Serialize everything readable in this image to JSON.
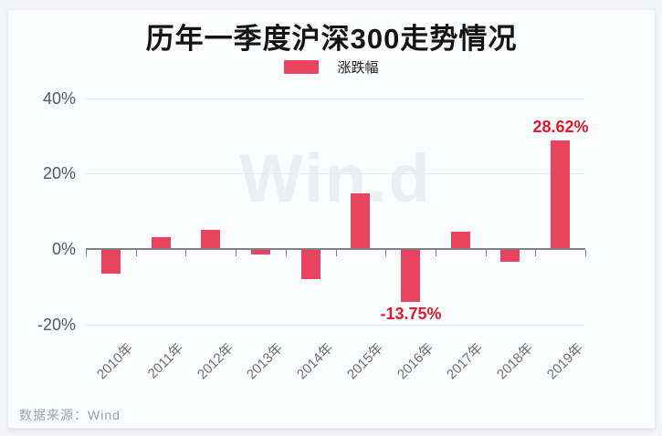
{
  "title": "历年一季度沪深300走势情况",
  "legend": {
    "label": "涨跌幅",
    "swatch_color": "#e8435f"
  },
  "watermark": "Win.d",
  "source_note": "数据来源：Wind",
  "chart_data": {
    "type": "bar",
    "title": "历年一季度沪深300走势情况",
    "series_name": "涨跌幅",
    "categories": [
      "2010年",
      "2011年",
      "2012年",
      "2013年",
      "2014年",
      "2015年",
      "2016年",
      "2017年",
      "2018年",
      "2019年"
    ],
    "values": [
      -6.3,
      3.0,
      4.9,
      -1.2,
      -7.8,
      14.6,
      -13.75,
      4.4,
      -3.2,
      28.62
    ],
    "data_labels": [
      {
        "category": "2016年",
        "text": "-13.75%"
      },
      {
        "category": "2019年",
        "text": "28.62%"
      }
    ],
    "ytick_labels": [
      "40%",
      "20%",
      "0%",
      "-20%"
    ],
    "ytick_values": [
      40,
      20,
      0,
      -20
    ],
    "ylim": [
      -25,
      45
    ],
    "xlabel": "",
    "ylabel": "",
    "grid": true,
    "legend_position": "top",
    "bar_color": "#e8435f",
    "data_label_color": "#e0182c",
    "axis_line_color": "#7f7f84",
    "watermark_color": "#eceef1"
  }
}
